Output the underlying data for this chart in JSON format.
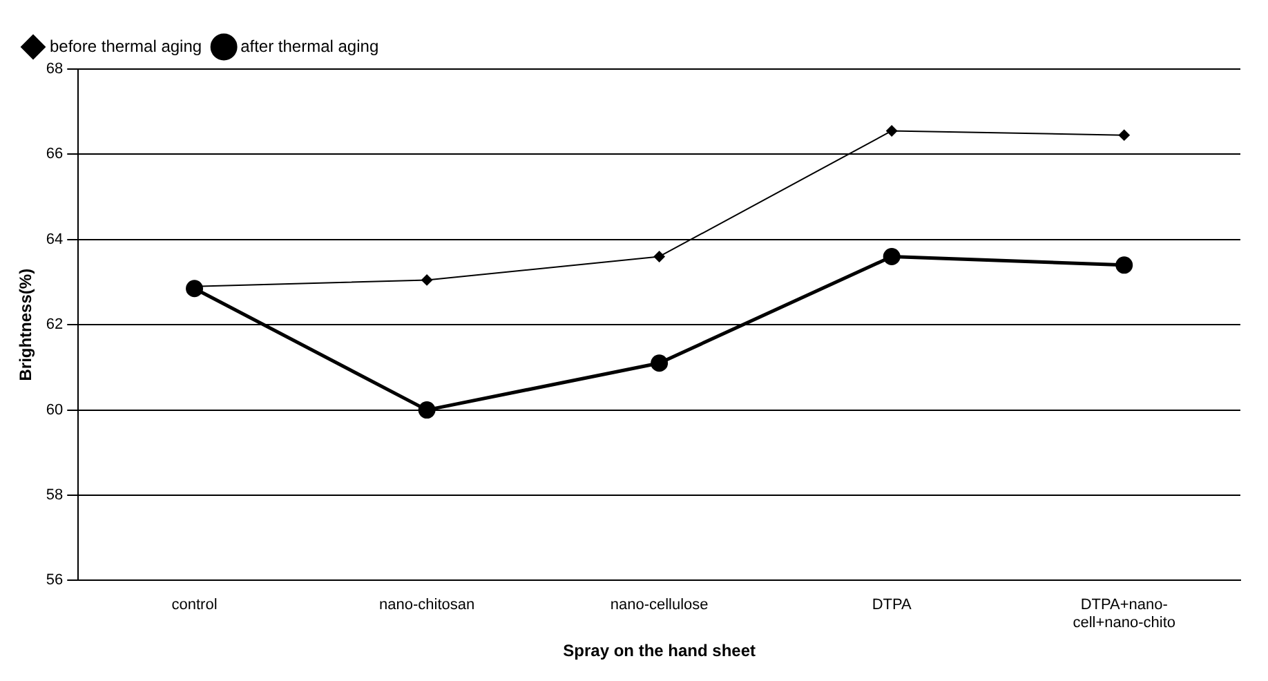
{
  "chart_data": {
    "type": "line",
    "xlabel": "Spray on the hand sheet",
    "ylabel": "Brightness(%)",
    "categories": [
      "control",
      "nano-chitosan",
      "nano-cellulose",
      "DTPA",
      "DTPA+nano-cell+nano-chito"
    ],
    "series": [
      {
        "name": "before thermal aging",
        "color": "#000000",
        "marker": "diamond",
        "values": [
          62.9,
          63.05,
          63.6,
          66.55,
          66.45
        ]
      },
      {
        "name": "after thermal aging",
        "color": "#000000",
        "marker": "circle",
        "values": [
          62.85,
          60.0,
          61.1,
          63.6,
          63.4
        ]
      }
    ],
    "ylim": [
      56,
      68
    ],
    "yticks": [
      56,
      58,
      60,
      62,
      64,
      66,
      68
    ],
    "grid": "y",
    "legend": "top left",
    "line_style": "solid"
  }
}
